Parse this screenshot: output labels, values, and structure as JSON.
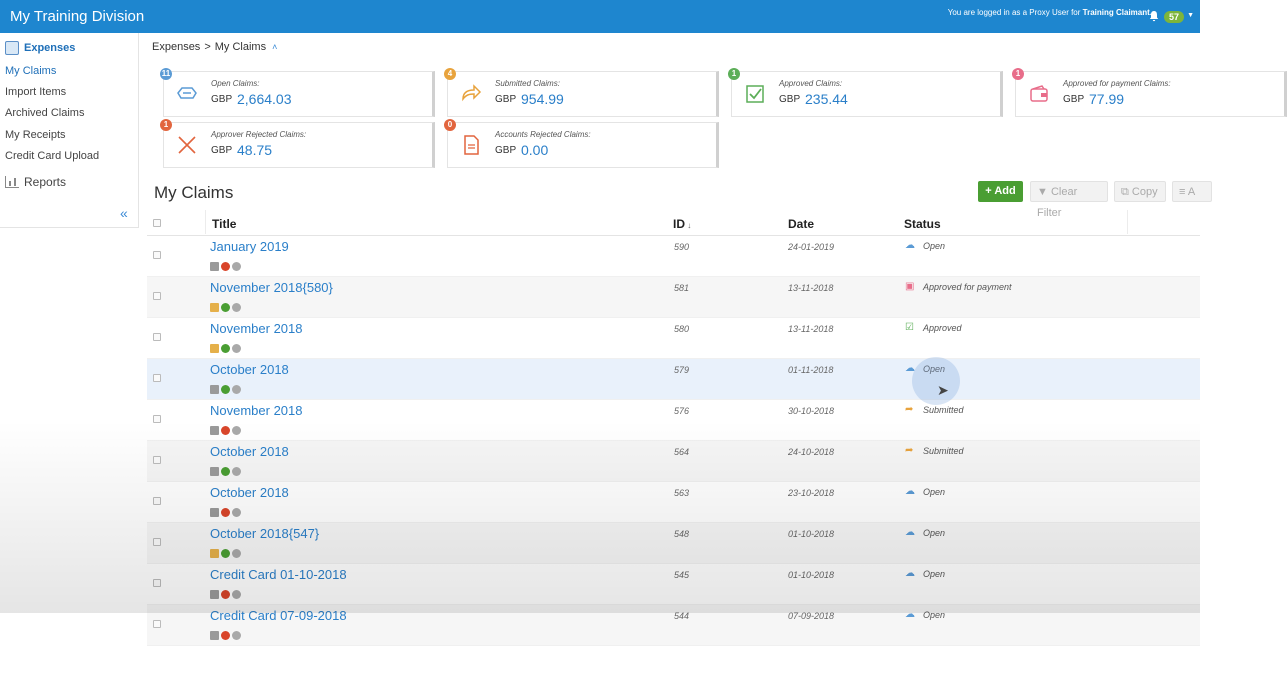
{
  "header": {
    "brand": "My Training Division",
    "login_prefix": "You are logged in as a Proxy User for",
    "login_user": "Training Claimant.",
    "notifications": "57"
  },
  "sidebar": {
    "section": "Expenses",
    "items": [
      {
        "label": "My Claims",
        "active": true
      },
      {
        "label": "Import Items"
      },
      {
        "label": "Archived Claims"
      },
      {
        "label": "My Receipts"
      },
      {
        "label": "Credit Card Upload"
      }
    ],
    "reports": "Reports",
    "collapse_icon": "double-chevron-left-icon"
  },
  "breadcrumb": {
    "root": "Expenses",
    "separator": ">",
    "current": "My Claims"
  },
  "summary": [
    {
      "label": "Open Claims:",
      "currency": "GBP",
      "amount": "2,664.03",
      "count": "11",
      "color": "#5b9bd5",
      "icon": "open-claims-icon"
    },
    {
      "label": "Submitted Claims:",
      "currency": "GBP",
      "amount": "954.99",
      "count": "4",
      "color": "#e8a33d",
      "icon": "submitted-icon"
    },
    {
      "label": "Approved Claims:",
      "currency": "GBP",
      "amount": "235.44",
      "count": "1",
      "color": "#5cae58",
      "icon": "approved-icon"
    },
    {
      "label": "Approved for payment Claims:",
      "currency": "GBP",
      "amount": "77.99",
      "count": "1",
      "color": "#e86d8a",
      "icon": "wallet-icon"
    },
    {
      "label": "Approver Rejected Claims:",
      "currency": "GBP",
      "amount": "48.75",
      "count": "1",
      "color": "#e2653e",
      "icon": "rejected-icon"
    },
    {
      "label": "Accounts Rejected Claims:",
      "currency": "GBP",
      "amount": "0.00",
      "count": "0",
      "color": "#e2653e",
      "icon": "document-icon"
    }
  ],
  "page_title": "My Claims",
  "toolbar": {
    "add": "+ Add",
    "clear_filter": "Clear Filter",
    "copy": "Copy",
    "more": "A"
  },
  "table": {
    "headers": {
      "title": "Title",
      "id": "ID",
      "date": "Date",
      "status": "Status"
    },
    "rows": [
      {
        "title": "January 2019",
        "id": "590",
        "date": "24-01-2019",
        "status": "Open",
        "icons": [
          "sq",
          "warn",
          "info"
        ]
      },
      {
        "title": "November 2018{580}",
        "id": "581",
        "date": "13-11-2018",
        "status": "Approved for payment",
        "icons": [
          "folder",
          "ok",
          "info"
        ]
      },
      {
        "title": "November 2018",
        "id": "580",
        "date": "13-11-2018",
        "status": "Approved",
        "icons": [
          "folder",
          "ok",
          "info"
        ]
      },
      {
        "title": "October 2018",
        "id": "579",
        "date": "01-11-2018",
        "status": "Open",
        "icons": [
          "sq",
          "ok",
          "info"
        ]
      },
      {
        "title": "November 2018",
        "id": "576",
        "date": "30-10-2018",
        "status": "Submitted",
        "icons": [
          "sq",
          "warn",
          "info"
        ]
      },
      {
        "title": "October 2018",
        "id": "564",
        "date": "24-10-2018",
        "status": "Submitted",
        "icons": [
          "sq",
          "ok",
          "info"
        ]
      },
      {
        "title": "October 2018",
        "id": "563",
        "date": "23-10-2018",
        "status": "Open",
        "icons": [
          "sq",
          "warn",
          "info"
        ]
      },
      {
        "title": "October 2018{547}",
        "id": "548",
        "date": "01-10-2018",
        "status": "Open",
        "icons": [
          "folder",
          "ok",
          "info"
        ]
      },
      {
        "title": "Credit Card 01-10-2018",
        "id": "545",
        "date": "01-10-2018",
        "status": "Open",
        "icons": [
          "sq",
          "warn",
          "info"
        ]
      },
      {
        "title": "Credit Card 07-09-2018",
        "id": "544",
        "date": "07-09-2018",
        "status": "Open",
        "icons": [
          "sq",
          "warn",
          "info"
        ]
      }
    ]
  }
}
